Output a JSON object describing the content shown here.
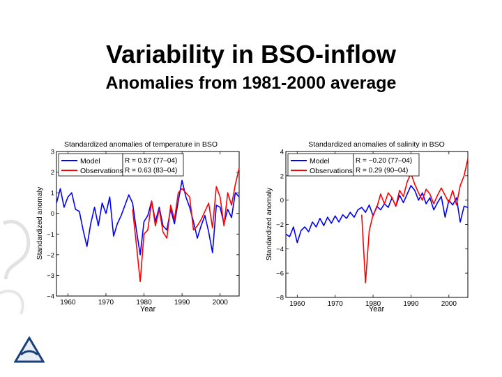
{
  "slide": {
    "title": "Variability in BSO-inflow",
    "subtitle": "Anomalies from 1981-2000 average"
  },
  "colors": {
    "model": "#0000ff",
    "observations": "#ff0000",
    "axis": "#000000"
  },
  "chart_data": [
    {
      "type": "line",
      "title": "Standardized anomalies of temperature in BSO",
      "xlabel": "Year",
      "ylabel": "Standardized anomaly",
      "xlim": [
        1957,
        2005
      ],
      "ylim": [
        -4,
        3
      ],
      "xticks": [
        1960,
        1970,
        1980,
        1990,
        2000
      ],
      "yticks": [
        -4,
        -3,
        -2,
        -1,
        0,
        1,
        2,
        3
      ],
      "legend": {
        "location": "top-left",
        "labels": [
          "Model",
          "Observations"
        ]
      },
      "annotations": [
        "R = 0.57 (77–04)",
        "R = 0.63 (83–04)"
      ],
      "series": [
        {
          "name": "Model",
          "x": [
            1957,
            1958,
            1959,
            1960,
            1961,
            1962,
            1963,
            1964,
            1965,
            1966,
            1967,
            1968,
            1969,
            1970,
            1971,
            1972,
            1973,
            1974,
            1975,
            1976,
            1977,
            1978,
            1979,
            1980,
            1981,
            1982,
            1983,
            1984,
            1985,
            1986,
            1987,
            1988,
            1989,
            1990,
            1991,
            1992,
            1993,
            1994,
            1995,
            1996,
            1997,
            1998,
            1999,
            2000,
            2001,
            2002,
            2003,
            2004,
            2005
          ],
          "values": [
            0.5,
            1.2,
            0.3,
            0.8,
            1.0,
            0.2,
            0.1,
            -0.8,
            -1.6,
            -0.5,
            0.3,
            -0.6,
            0.5,
            0.0,
            0.8,
            -1.1,
            -0.5,
            -0.1,
            0.4,
            0.9,
            0.5,
            -0.8,
            -2.0,
            -0.4,
            -0.1,
            0.6,
            -0.4,
            0.3,
            -0.6,
            -0.8,
            0.2,
            -0.5,
            0.6,
            1.6,
            0.8,
            0.3,
            -0.4,
            -1.2,
            -0.6,
            -0.1,
            -0.9,
            -1.9,
            0.4,
            0.3,
            -0.5,
            0.2,
            -0.2,
            1.0,
            0.8
          ]
        },
        {
          "name": "Observations",
          "x": [
            1977,
            1978,
            1979,
            1980,
            1981,
            1982,
            1983,
            1984,
            1985,
            1986,
            1987,
            1988,
            1989,
            1990,
            1991,
            1992,
            1993,
            1994,
            1995,
            1996,
            1997,
            1998,
            1999,
            2000,
            2001,
            2002,
            2003,
            2004,
            2005
          ],
          "values": [
            0.2,
            -1.5,
            -3.3,
            -1.0,
            -0.8,
            0.6,
            -0.6,
            0.2,
            -0.9,
            -1.2,
            0.4,
            -0.3,
            1.0,
            1.2,
            1.0,
            0.8,
            -0.8,
            -0.6,
            -0.3,
            0.1,
            0.5,
            -0.7,
            1.3,
            0.8,
            -0.6,
            1.0,
            0.4,
            1.4,
            2.2
          ]
        }
      ]
    },
    {
      "type": "line",
      "title": "Standardized anomalies of salinity in BSO",
      "xlabel": "Year",
      "ylabel": "Standardized anomaly",
      "xlim": [
        1957,
        2005
      ],
      "ylim": [
        -8,
        4
      ],
      "xticks": [
        1960,
        1970,
        1980,
        1990,
        2000
      ],
      "yticks": [
        -8,
        -6,
        -4,
        -2,
        0,
        2,
        4
      ],
      "legend": {
        "location": "top-left",
        "labels": [
          "Model",
          "Observations"
        ]
      },
      "annotations": [
        "R = −0.20 (77–04)",
        "R = 0.29 (90–04)"
      ],
      "series": [
        {
          "name": "Model",
          "x": [
            1957,
            1958,
            1959,
            1960,
            1961,
            1962,
            1963,
            1964,
            1965,
            1966,
            1967,
            1968,
            1969,
            1970,
            1971,
            1972,
            1973,
            1974,
            1975,
            1976,
            1977,
            1978,
            1979,
            1980,
            1981,
            1982,
            1983,
            1984,
            1985,
            1986,
            1987,
            1988,
            1989,
            1990,
            1991,
            1992,
            1993,
            1994,
            1995,
            1996,
            1997,
            1998,
            1999,
            2000,
            2001,
            2002,
            2003,
            2004,
            2005
          ],
          "values": [
            -2.8,
            -3.0,
            -2.2,
            -3.5,
            -2.5,
            -2.2,
            -2.6,
            -1.8,
            -2.2,
            -1.5,
            -2.1,
            -1.4,
            -1.9,
            -1.3,
            -1.8,
            -1.2,
            -1.5,
            -1.0,
            -1.4,
            -0.8,
            -0.6,
            -1.0,
            -0.4,
            -1.3,
            -0.5,
            -0.8,
            -0.3,
            -0.6,
            0.2,
            -0.5,
            0.4,
            -0.2,
            0.5,
            1.2,
            0.8,
            0.0,
            0.6,
            -0.3,
            0.2,
            -0.8,
            -0.2,
            0.3,
            -1.4,
            0.0,
            -0.4,
            0.2,
            -1.8,
            -0.5,
            -0.6
          ]
        },
        {
          "name": "Observations",
          "x": [
            1977,
            1978,
            1979,
            1980,
            1981,
            1982,
            1983,
            1984,
            1985,
            1986,
            1987,
            1988,
            1989,
            1990,
            1991,
            1992,
            1993,
            1994,
            1995,
            1996,
            1997,
            1998,
            1999,
            2000,
            2001,
            2002,
            2003,
            2004,
            2005
          ],
          "values": [
            -1.2,
            -6.8,
            -2.5,
            -1.2,
            -0.6,
            0.5,
            -0.3,
            0.6,
            0.2,
            -0.5,
            0.8,
            0.3,
            1.5,
            2.2,
            1.3,
            0.6,
            0.0,
            0.9,
            0.5,
            -0.3,
            0.4,
            1.0,
            0.4,
            -0.2,
            0.8,
            -0.4,
            1.2,
            2.0,
            3.4
          ]
        }
      ]
    }
  ]
}
